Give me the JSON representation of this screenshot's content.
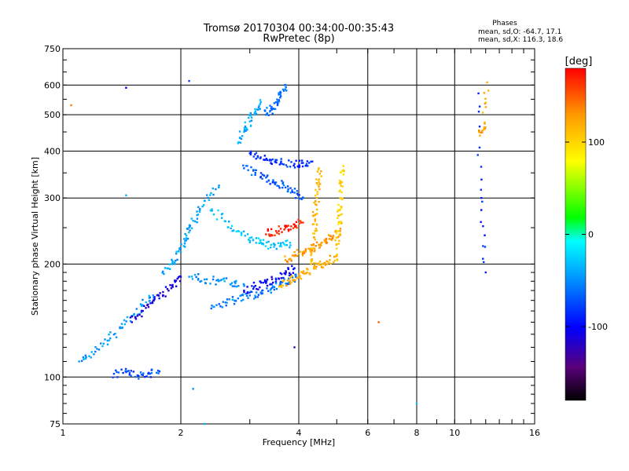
{
  "chart_data": {
    "type": "scatter",
    "title": "Tromsø 20170304 00:34:00-00:35:43",
    "subtitle": "RwPretec (8p)",
    "xlabel": "Frequency [MHz]",
    "ylabel": "Stationary phase Virtual Height [km]",
    "x_scale": "log",
    "y_scale": "log",
    "xlim": [
      1,
      16
    ],
    "ylim": [
      75,
      750
    ],
    "x_ticks": [
      1,
      2,
      4,
      6,
      8,
      10,
      16
    ],
    "x_tick_labels": [
      "1",
      "2",
      "4",
      "6",
      "8",
      "10",
      "16"
    ],
    "y_ticks": [
      75,
      100,
      200,
      300,
      400,
      500,
      600,
      750
    ],
    "y_tick_labels": [
      "75",
      "100",
      "200",
      "300",
      "400",
      "500",
      "600",
      "750"
    ],
    "grid": true,
    "phase_info": {
      "heading": "Phases",
      "line_o": "mean, sd,O: -64.7, 17.1",
      "line_x": "mean, sd,X: 116.3, 18.6"
    },
    "colorbar": {
      "label": "[deg]",
      "range": [
        -180,
        180
      ],
      "ticks": [
        100,
        0,
        -100
      ],
      "tick_labels": [
        "100",
        "0",
        "-100"
      ],
      "colors": [
        "#000000",
        "#5a007a",
        "#0000ff",
        "#00b4ff",
        "#00ffff",
        "#00ff00",
        "#ffff00",
        "#ff9900",
        "#ff0000"
      ]
    },
    "traces": [
      {
        "name": "f2o_upper",
        "phase": -95,
        "x": [
          3.0,
          3.2,
          3.4,
          3.6,
          3.9,
          4.1,
          4.3
        ],
        "y": [
          395,
          385,
          378,
          372,
          370,
          372,
          375
        ]
      },
      {
        "name": "f2o_lower",
        "phase": -80,
        "x": [
          2.9,
          3.1,
          3.3,
          3.5,
          3.7,
          3.9,
          4.1
        ],
        "y": [
          360,
          350,
          340,
          330,
          320,
          310,
          300
        ]
      },
      {
        "name": "f1_cusp_o",
        "phase": -40,
        "x": [
          2.4,
          2.6,
          2.8,
          3.0,
          3.2,
          3.4,
          3.6,
          3.8
        ],
        "y": [
          280,
          260,
          245,
          235,
          228,
          225,
          225,
          228
        ]
      },
      {
        "name": "e_trace_o",
        "phase": -60,
        "x": [
          2.1,
          2.3,
          2.5,
          2.7,
          2.9
        ],
        "y": [
          185,
          182,
          180,
          178,
          176
        ]
      },
      {
        "name": "es_low",
        "phase": -70,
        "x": [
          2.4,
          2.6,
          2.8,
          3.0,
          3.2,
          3.4,
          3.6,
          3.8,
          4.0
        ],
        "y": [
          155,
          158,
          162,
          165,
          168,
          172,
          176,
          180,
          185
        ]
      },
      {
        "name": "o_trace_dark",
        "phase": -110,
        "x": [
          2.9,
          3.1,
          3.3,
          3.5,
          3.7,
          3.9
        ],
        "y": [
          170,
          175,
          178,
          182,
          188,
          195
        ]
      },
      {
        "name": "f2x_lower",
        "phase": 120,
        "x": [
          3.6,
          3.8,
          4.0,
          4.2,
          4.4,
          4.6,
          4.8,
          5.0
        ],
        "y": [
          175,
          180,
          185,
          190,
          195,
          200,
          205,
          210
        ]
      },
      {
        "name": "f2x_mid",
        "phase": 130,
        "x": [
          3.7,
          3.9,
          4.1,
          4.3,
          4.5,
          4.7,
          4.9,
          5.1
        ],
        "y": [
          205,
          210,
          215,
          220,
          225,
          230,
          238,
          245
        ]
      },
      {
        "name": "x_vertical",
        "phase": 115,
        "x": [
          4.3,
          4.35,
          4.4,
          4.4,
          4.45,
          4.5,
          4.5
        ],
        "y": [
          200,
          220,
          245,
          270,
          300,
          330,
          360
        ]
      },
      {
        "name": "x_vertical_2",
        "phase": 100,
        "x": [
          5.0,
          5.05,
          5.1,
          5.1,
          5.15,
          5.2
        ],
        "y": [
          220,
          245,
          270,
          300,
          330,
          365
        ]
      },
      {
        "name": "x_red_cusp",
        "phase": 170,
        "x": [
          3.3,
          3.5,
          3.7,
          3.9,
          4.1
        ],
        "y": [
          240,
          245,
          250,
          255,
          258
        ]
      },
      {
        "name": "f_high_top",
        "phase": -75,
        "x": [
          3.3,
          3.4,
          3.5,
          3.6,
          3.7
        ],
        "y": [
          500,
          520,
          540,
          560,
          600
        ]
      },
      {
        "name": "f_high_top_col",
        "phase": -50,
        "x": [
          2.8,
          2.9,
          3.0,
          3.1,
          3.2
        ],
        "y": [
          420,
          450,
          480,
          510,
          540
        ]
      },
      {
        "name": "spread_left",
        "phase": -60,
        "x": [
          1.1,
          1.2,
          1.3,
          1.4,
          1.5,
          1.6,
          1.7
        ],
        "y": [
          110,
          115,
          125,
          135,
          145,
          155,
          165
        ]
      },
      {
        "name": "spread_left_dark",
        "phase": -120,
        "x": [
          1.5,
          1.6,
          1.7,
          1.8,
          1.9,
          2.0
        ],
        "y": [
          140,
          150,
          160,
          165,
          175,
          185
        ]
      },
      {
        "name": "low_blobs",
        "phase": -85,
        "x": [
          1.35,
          1.45,
          1.55,
          1.65,
          1.75
        ],
        "y": [
          102,
          103,
          101,
          102,
          104
        ]
      },
      {
        "name": "mid_spread",
        "phase": -55,
        "x": [
          1.8,
          1.9,
          2.0,
          2.05,
          2.1,
          2.2,
          2.3,
          2.5
        ],
        "y": [
          190,
          200,
          215,
          230,
          250,
          270,
          295,
          320
        ]
      },
      {
        "name": "far_right_o",
        "phase": -100,
        "x": [
          11.5,
          11.7,
          12.0
        ],
        "y": [
          570,
          300,
          190
        ]
      },
      {
        "name": "far_right_x",
        "phase": 120,
        "x": [
          11.6,
          11.9,
          12.1
        ],
        "y": [
          440,
          460,
          610
        ]
      }
    ],
    "stray_points": [
      {
        "x": 1.45,
        "y": 590,
        "phase": -110
      },
      {
        "x": 1.05,
        "y": 530,
        "phase": 140
      },
      {
        "x": 2.1,
        "y": 615,
        "phase": -90
      },
      {
        "x": 1.45,
        "y": 305,
        "phase": -50
      },
      {
        "x": 3.9,
        "y": 120,
        "phase": -130
      },
      {
        "x": 6.4,
        "y": 140,
        "phase": 150
      },
      {
        "x": 8.0,
        "y": 85,
        "phase": -40
      },
      {
        "x": 2.15,
        "y": 93,
        "phase": -60
      },
      {
        "x": 2.3,
        "y": 75,
        "phase": -50
      }
    ]
  }
}
